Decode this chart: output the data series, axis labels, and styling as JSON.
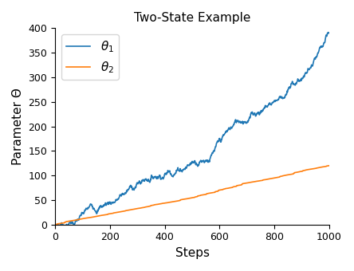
{
  "title": "Two-State Example",
  "xlabel": "Steps",
  "ylabel": "Parameter Θ",
  "xlim": [
    0,
    1000
  ],
  "ylim": [
    0,
    400
  ],
  "xticks": [
    0,
    200,
    400,
    600,
    800,
    1000
  ],
  "yticks": [
    0,
    50,
    100,
    150,
    200,
    250,
    300,
    350,
    400
  ],
  "theta1_color": "#1f77b4",
  "theta2_color": "#ff7f0e",
  "figsize": [
    4.44,
    3.4
  ],
  "dpi": 100,
  "seed": 7,
  "n_steps": 1000,
  "theta1_final": 390,
  "theta2_final": 120
}
